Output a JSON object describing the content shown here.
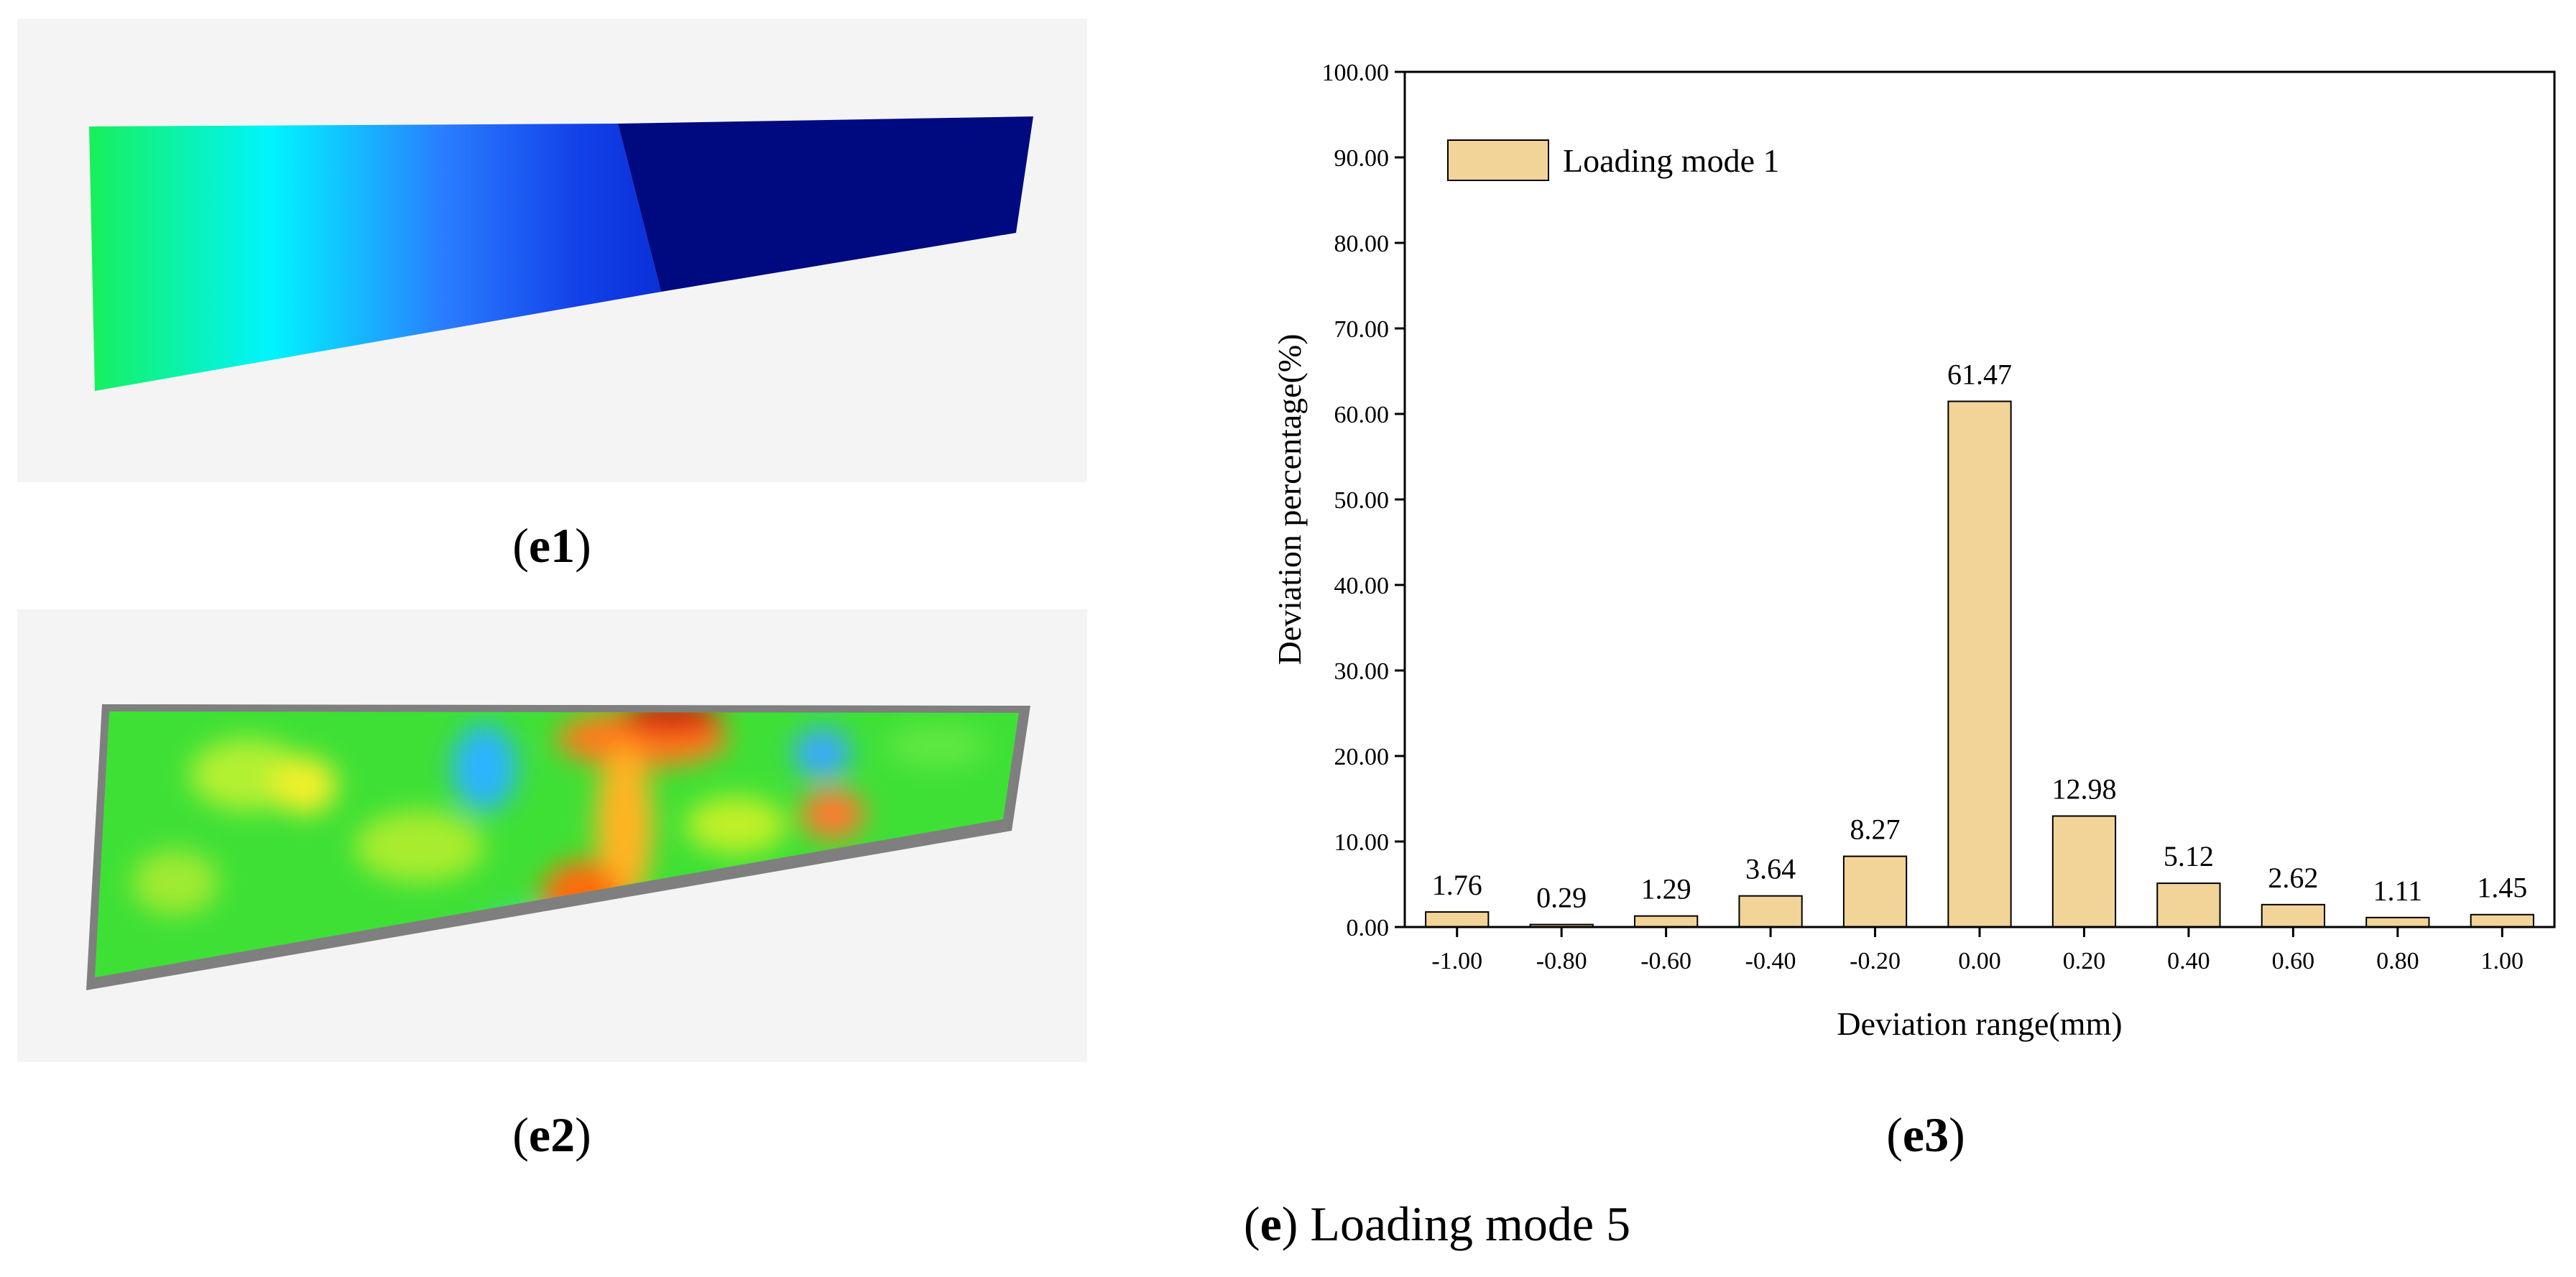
{
  "panels": {
    "e1_label_letter": "e1",
    "e2_label_letter": "e2",
    "e3_label_letter": "e3"
  },
  "caption": {
    "letter": "e",
    "text": " Loading mode 5"
  },
  "colors": {
    "bar_fill": "#f2d398",
    "bar_stroke": "#000000",
    "panel_bg": "#f4f4f4",
    "frame_gray": "#7f7f7f"
  },
  "chart_data": {
    "type": "bar",
    "categories": [
      "-1.00",
      "-0.80",
      "-0.60",
      "-0.40",
      "-0.20",
      "0.00",
      "0.20",
      "0.40",
      "0.60",
      "0.80",
      "1.00"
    ],
    "series": [
      {
        "name": "Loading mode 1",
        "values": [
          1.76,
          0.29,
          1.29,
          3.64,
          8.27,
          61.47,
          12.98,
          5.12,
          2.62,
          1.11,
          1.45
        ]
      }
    ],
    "data_labels": [
      "1.76",
      "0.29",
      "1.29",
      "3.64",
      "8.27",
      "61.47",
      "12.98",
      "5.12",
      "2.62",
      "1.11",
      "1.45"
    ],
    "y_ticks": [
      "0.00",
      "10.00",
      "20.00",
      "30.00",
      "40.00",
      "50.00",
      "60.00",
      "70.00",
      "80.00",
      "90.00",
      "100.00"
    ],
    "xlabel": "Deviation range(mm)",
    "ylabel": "Deviation percentage(%)",
    "ylim": [
      0,
      100
    ],
    "legend_position": "top-left",
    "grid": false
  }
}
